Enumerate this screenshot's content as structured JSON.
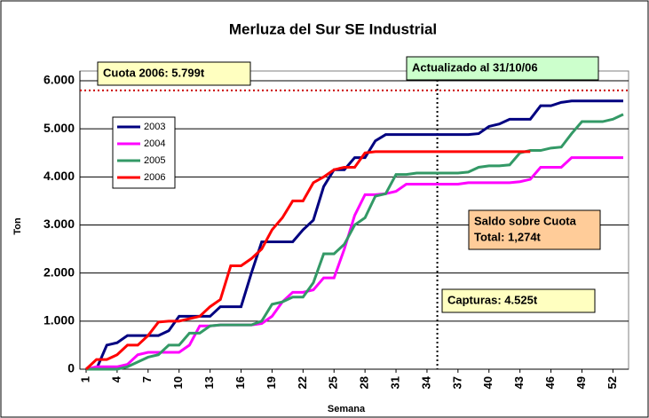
{
  "chart_data": {
    "type": "line",
    "title": "Merluza del Sur SE Industrial",
    "xlabel": "Semana",
    "ylabel": "Ton",
    "x": [
      1,
      2,
      3,
      4,
      5,
      6,
      7,
      8,
      9,
      10,
      11,
      12,
      13,
      14,
      15,
      16,
      17,
      18,
      19,
      20,
      21,
      22,
      23,
      24,
      25,
      26,
      27,
      28,
      29,
      30,
      31,
      32,
      33,
      34,
      35,
      36,
      37,
      38,
      39,
      40,
      41,
      42,
      43,
      44,
      45,
      46,
      47,
      48,
      49,
      50,
      51,
      52,
      53
    ],
    "xlim": [
      1,
      53
    ],
    "xticks": [
      1,
      4,
      7,
      10,
      13,
      16,
      19,
      22,
      25,
      28,
      31,
      34,
      37,
      40,
      43,
      46,
      49,
      52
    ],
    "ylim": [
      0,
      6000
    ],
    "yticks": [
      0,
      {
        "value": 1000,
        "label": "1.000"
      },
      {
        "value": 2000,
        "label": "2.000"
      },
      {
        "value": 3000,
        "label": "3.000"
      },
      {
        "value": 4000,
        "label": "4.000"
      },
      {
        "value": 5000,
        "label": "5.000"
      },
      {
        "value": 6000,
        "label": "6.000"
      }
    ],
    "grid": true,
    "legend": "upper left",
    "series": [
      {
        "name": "2003",
        "color": "#000080",
        "values": [
          0,
          0,
          500,
          550,
          700,
          700,
          700,
          700,
          800,
          1100,
          1100,
          1100,
          1100,
          1300,
          1300,
          1300,
          2000,
          2650,
          2650,
          2650,
          2650,
          2900,
          3100,
          3800,
          4150,
          4150,
          4400,
          4400,
          4750,
          4880,
          4880,
          4880,
          4880,
          4880,
          4880,
          4880,
          4880,
          4880,
          4900,
          5050,
          5100,
          5200,
          5200,
          5200,
          5480,
          5480,
          5550,
          5580,
          5580,
          5580,
          5580,
          5580,
          5580
        ]
      },
      {
        "name": "2004",
        "color": "#ff00ff",
        "values": [
          0,
          50,
          50,
          50,
          100,
          300,
          350,
          350,
          350,
          350,
          500,
          900,
          900,
          920,
          920,
          920,
          920,
          950,
          1100,
          1400,
          1600,
          1600,
          1650,
          1900,
          1900,
          2500,
          3200,
          3630,
          3630,
          3650,
          3700,
          3850,
          3850,
          3850,
          3850,
          3850,
          3850,
          3880,
          3880,
          3880,
          3880,
          3880,
          3900,
          3950,
          4200,
          4200,
          4200,
          4400,
          4400,
          4400,
          4400,
          4400,
          4400
        ]
      },
      {
        "name": "2005",
        "color": "#339966",
        "values": [
          0,
          0,
          0,
          0,
          50,
          150,
          250,
          300,
          500,
          500,
          750,
          750,
          900,
          920,
          920,
          920,
          920,
          1000,
          1350,
          1400,
          1500,
          1500,
          1800,
          2400,
          2400,
          2600,
          3000,
          3150,
          3600,
          3650,
          4050,
          4050,
          4080,
          4080,
          4080,
          4080,
          4080,
          4100,
          4200,
          4230,
          4230,
          4250,
          4500,
          4550,
          4550,
          4600,
          4620,
          4900,
          5150,
          5150,
          5150,
          5200,
          5300
        ]
      },
      {
        "name": "2006",
        "color": "#ff0000",
        "values": [
          0,
          200,
          200,
          300,
          500,
          500,
          700,
          980,
          1000,
          1000,
          1050,
          1100,
          1300,
          1450,
          2150,
          2150,
          2300,
          2500,
          2900,
          3150,
          3500,
          3500,
          3880,
          4000,
          4150,
          4200,
          4200,
          4500,
          4525,
          4525,
          4525,
          4525,
          4525,
          4525,
          4525,
          4525,
          4525,
          4525,
          4525,
          4525,
          4525,
          4525,
          4525,
          4525,
          null,
          null,
          null,
          null,
          null,
          null,
          null,
          null,
          null
        ]
      }
    ],
    "hline": 5799,
    "vline": 35,
    "annotations": [
      [
        "Cuota 2006: 5.799t"
      ],
      [
        "Actualizado al 31/10/06"
      ],
      [
        "Saldo sobre Cuota",
        "Total: 1,274t"
      ],
      [
        "Capturas: 4.525t"
      ]
    ]
  }
}
